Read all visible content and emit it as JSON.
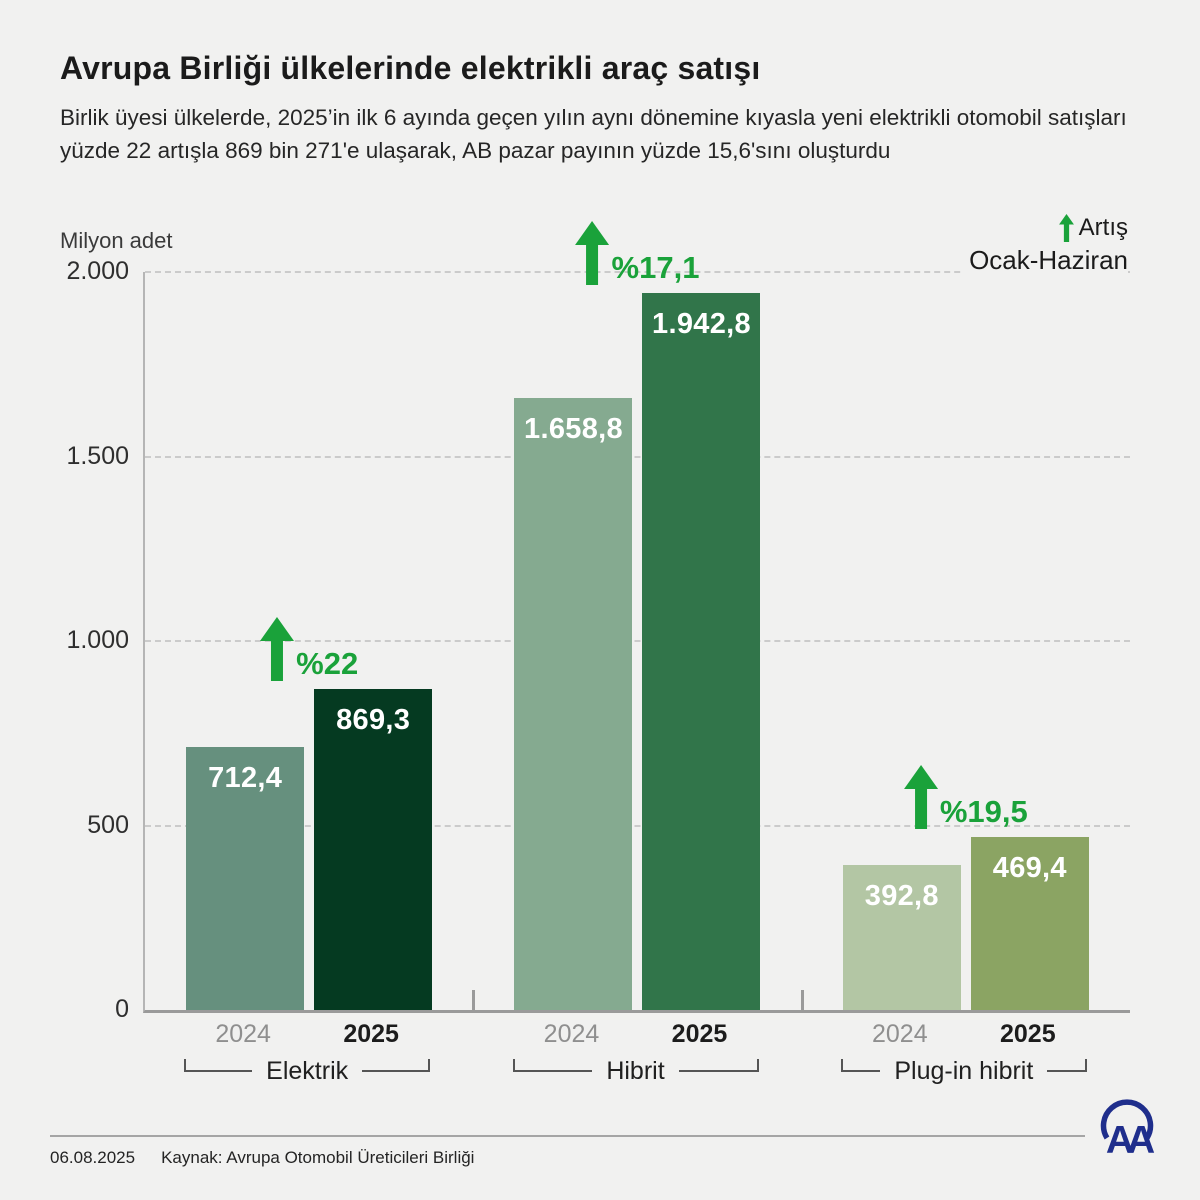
{
  "header": {
    "title": "Avrupa Birliği ülkelerinde elektrikli araç satışı",
    "subtitle": "Birlik üyesi ülkelerde, 2025’in ilk 6 ayında geçen yılın aynı dönemine kıyasla yeni elektrikli otomobil satışları yüzde 22 artışla 869 bin 271'e ulaşarak, AB pazar payının yüzde 15,6'sını oluşturdu"
  },
  "legend": {
    "increase_label": "Artış",
    "period_label": "Ocak-Haziran",
    "arrow_color": "#1aa23a"
  },
  "chart_data": {
    "type": "bar",
    "title": "Avrupa Birliği ülkelerinde elektrikli araç satışı",
    "unit_label": "Milyon adet",
    "ylim": [
      0,
      2000
    ],
    "yticks": [
      {
        "value": 2000,
        "label": "2.000"
      },
      {
        "value": 1500,
        "label": "1.500"
      },
      {
        "value": 1000,
        "label": "1.000"
      },
      {
        "value": 500,
        "label": "500"
      },
      {
        "value": 0,
        "label": "0"
      }
    ],
    "grid": "horizontal-dashed",
    "legend_position": "top-right",
    "categories": [
      "2024",
      "2025"
    ],
    "groups": [
      {
        "label": "Elektrik",
        "change": "%22",
        "bars": [
          {
            "year": "2024",
            "value": 712.4,
            "label": "712,4",
            "color": "#66907e"
          },
          {
            "year": "2025",
            "value": 869.3,
            "label": "869,3",
            "color": "#053a21"
          }
        ]
      },
      {
        "label": "Hibrit",
        "change": "%17,1",
        "bars": [
          {
            "year": "2024",
            "value": 1658.8,
            "label": "1.658,8",
            "color": "#85aa90"
          },
          {
            "year": "2025",
            "value": 1942.8,
            "label": "1.942,8",
            "color": "#31754a"
          }
        ]
      },
      {
        "label": "Plug-in hibrit",
        "change": "%19,5",
        "bars": [
          {
            "year": "2024",
            "value": 392.8,
            "label": "392,8",
            "color": "#b3c6a4"
          },
          {
            "year": "2025",
            "value": 469.4,
            "label": "469,4",
            "color": "#8ba463"
          }
        ]
      }
    ]
  },
  "footer": {
    "date": "06.08.2025",
    "source": "Kaynak: Avrupa Otomobil Üreticileri Birliği",
    "logo_text": "AA"
  }
}
